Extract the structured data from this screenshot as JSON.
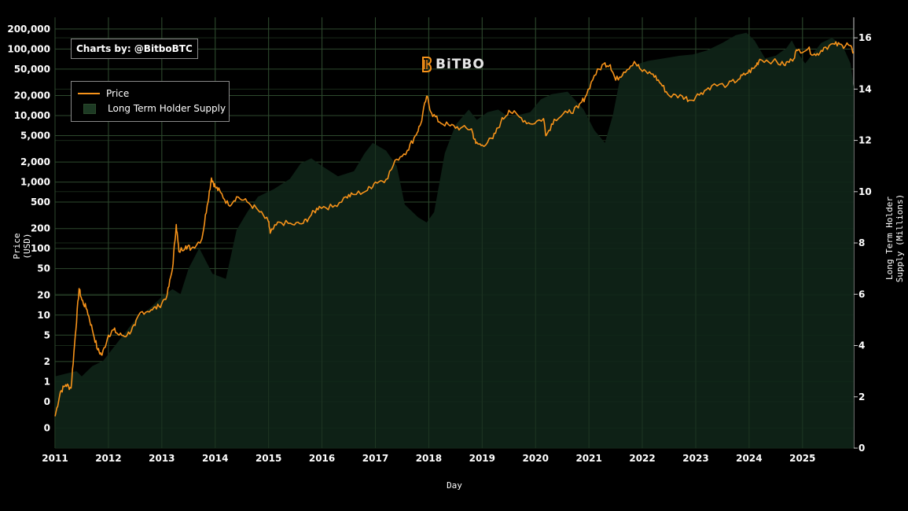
{
  "credit": "Charts by: @BitboBTC",
  "brand": {
    "logo_text": "BiTBO",
    "logo_icon": "bitbo-logo-icon"
  },
  "legend": {
    "placement": "top-left",
    "items": [
      {
        "label": "Price",
        "color": "#f7931a",
        "kind": "line"
      },
      {
        "label": "Long Term Holder Supply",
        "color": "#10251a",
        "kind": "area"
      }
    ]
  },
  "colors": {
    "background": "#000000",
    "grid": "#2e4a2e",
    "price": "#f7931a",
    "supply_fill": "#0f2418",
    "text": "#ffffff"
  },
  "chart_data": {
    "type": "line",
    "grid": true,
    "xlabel": "Day",
    "ylabel_left": "Price (USD)",
    "ylabel_right": "Long Term Holder Supply (Millions)",
    "x_ticks": [
      "2011",
      "2012",
      "2013",
      "2014",
      "2015",
      "2016",
      "2017",
      "2018",
      "2019",
      "2020",
      "2021",
      "2022",
      "2023",
      "2024",
      "2025"
    ],
    "x_range": [
      2011.0,
      2025.96
    ],
    "y_left": {
      "scale": "log",
      "range": [
        0.1,
        300000
      ],
      "ticks": [
        {
          "label": "200,000",
          "value": 200000
        },
        {
          "label": "100,000",
          "value": 100000
        },
        {
          "label": "50,000",
          "value": 50000
        },
        {
          "label": "20,000",
          "value": 20000
        },
        {
          "label": "10,000",
          "value": 10000
        },
        {
          "label": "5,000",
          "value": 5000
        },
        {
          "label": "2,000",
          "value": 2000
        },
        {
          "label": "1,000",
          "value": 1000
        },
        {
          "label": "500",
          "value": 500
        },
        {
          "label": "200",
          "value": 200
        },
        {
          "label": "100",
          "value": 100
        },
        {
          "label": "50",
          "value": 50
        },
        {
          "label": "20",
          "value": 20
        },
        {
          "label": "10",
          "value": 10
        },
        {
          "label": "5",
          "value": 5
        },
        {
          "label": "2",
          "value": 2
        },
        {
          "label": "1",
          "value": 1
        },
        {
          "label": "0",
          "value": 0.5
        },
        {
          "label": "0",
          "value": 0.2
        }
      ]
    },
    "y_right": {
      "scale": "linear",
      "range": [
        0,
        16.8
      ],
      "ticks": [
        {
          "label": "16",
          "value": 16
        },
        {
          "label": "14",
          "value": 14
        },
        {
          "label": "12",
          "value": 12
        },
        {
          "label": "10",
          "value": 10
        },
        {
          "label": "8",
          "value": 8
        },
        {
          "label": "6",
          "value": 6
        },
        {
          "label": "4",
          "value": 4
        },
        {
          "label": "2",
          "value": 2
        },
        {
          "label": "0",
          "value": 0
        }
      ]
    },
    "series": [
      {
        "name": "Price",
        "axis": "left",
        "points": [
          [
            2011.0,
            0.3
          ],
          [
            2011.1,
            0.7
          ],
          [
            2011.2,
            0.9
          ],
          [
            2011.3,
            0.8
          ],
          [
            2011.38,
            5
          ],
          [
            2011.45,
            25
          ],
          [
            2011.5,
            17
          ],
          [
            2011.6,
            12
          ],
          [
            2011.7,
            6
          ],
          [
            2011.8,
            3
          ],
          [
            2011.88,
            2.5
          ],
          [
            2012.0,
            5
          ],
          [
            2012.1,
            6
          ],
          [
            2012.2,
            5
          ],
          [
            2012.35,
            5
          ],
          [
            2012.5,
            7
          ],
          [
            2012.6,
            11
          ],
          [
            2012.8,
            12
          ],
          [
            2012.95,
            13.5
          ],
          [
            2013.1,
            20
          ],
          [
            2013.2,
            50
          ],
          [
            2013.27,
            230
          ],
          [
            2013.32,
            90
          ],
          [
            2013.45,
            110
          ],
          [
            2013.55,
            100
          ],
          [
            2013.75,
            140
          ],
          [
            2013.85,
            450
          ],
          [
            2013.93,
            1150
          ],
          [
            2014.0,
            850
          ],
          [
            2014.1,
            700
          ],
          [
            2014.25,
            450
          ],
          [
            2014.4,
            600
          ],
          [
            2014.6,
            500
          ],
          [
            2014.8,
            380
          ],
          [
            2015.0,
            250
          ],
          [
            2015.03,
            170
          ],
          [
            2015.2,
            250
          ],
          [
            2015.45,
            230
          ],
          [
            2015.65,
            240
          ],
          [
            2015.8,
            320
          ],
          [
            2015.95,
            430
          ],
          [
            2016.2,
            420
          ],
          [
            2016.45,
            600
          ],
          [
            2016.6,
            650
          ],
          [
            2016.85,
            750
          ],
          [
            2017.0,
            1000
          ],
          [
            2017.2,
            1100
          ],
          [
            2017.4,
            2200
          ],
          [
            2017.6,
            3000
          ],
          [
            2017.75,
            5000
          ],
          [
            2017.85,
            7500
          ],
          [
            2017.96,
            19500
          ],
          [
            2018.05,
            11000
          ],
          [
            2018.2,
            8000
          ],
          [
            2018.4,
            7000
          ],
          [
            2018.6,
            6500
          ],
          [
            2018.8,
            6300
          ],
          [
            2018.88,
            3800
          ],
          [
            2019.0,
            3600
          ],
          [
            2019.2,
            4500
          ],
          [
            2019.35,
            8000
          ],
          [
            2019.5,
            12000
          ],
          [
            2019.7,
            9500
          ],
          [
            2019.9,
            7500
          ],
          [
            2020.15,
            9000
          ],
          [
            2020.2,
            5000
          ],
          [
            2020.35,
            8800
          ],
          [
            2020.6,
            11000
          ],
          [
            2020.8,
            13000
          ],
          [
            2020.93,
            19000
          ],
          [
            2021.1,
            40000
          ],
          [
            2021.28,
            60000
          ],
          [
            2021.4,
            58000
          ],
          [
            2021.5,
            34000
          ],
          [
            2021.65,
            45000
          ],
          [
            2021.85,
            65000
          ],
          [
            2022.0,
            46000
          ],
          [
            2022.2,
            42000
          ],
          [
            2022.35,
            30000
          ],
          [
            2022.5,
            20000
          ],
          [
            2022.75,
            19500
          ],
          [
            2022.9,
            17000
          ],
          [
            2023.1,
            22000
          ],
          [
            2023.3,
            28000
          ],
          [
            2023.6,
            29000
          ],
          [
            2023.8,
            35000
          ],
          [
            2023.95,
            43000
          ],
          [
            2024.1,
            52000
          ],
          [
            2024.2,
            70000
          ],
          [
            2024.45,
            66000
          ],
          [
            2024.65,
            58000
          ],
          [
            2024.8,
            68000
          ],
          [
            2024.9,
            95000
          ],
          [
            2025.1,
            100000
          ],
          [
            2025.25,
            80000
          ],
          [
            2025.4,
            105000
          ],
          [
            2025.6,
            118000
          ],
          [
            2025.75,
            112000
          ],
          [
            2025.85,
            118000
          ],
          [
            2025.96,
            88000
          ]
        ]
      },
      {
        "name": "Long Term Holder Supply",
        "axis": "right",
        "points": [
          [
            2011.0,
            2.8
          ],
          [
            2011.2,
            2.9
          ],
          [
            2011.4,
            3.0
          ],
          [
            2011.5,
            2.8
          ],
          [
            2011.7,
            3.2
          ],
          [
            2011.9,
            3.4
          ],
          [
            2012.2,
            4.2
          ],
          [
            2012.5,
            5.0
          ],
          [
            2012.8,
            5.5
          ],
          [
            2013.0,
            5.9
          ],
          [
            2013.2,
            6.2
          ],
          [
            2013.35,
            6.0
          ],
          [
            2013.5,
            7.0
          ],
          [
            2013.7,
            7.8
          ],
          [
            2013.8,
            7.4
          ],
          [
            2013.95,
            6.8
          ],
          [
            2014.2,
            6.6
          ],
          [
            2014.4,
            8.5
          ],
          [
            2014.6,
            9.2
          ],
          [
            2014.8,
            9.8
          ],
          [
            2015.1,
            10.1
          ],
          [
            2015.4,
            10.5
          ],
          [
            2015.6,
            11.1
          ],
          [
            2015.8,
            11.3
          ],
          [
            2016.0,
            11.0
          ],
          [
            2016.3,
            10.6
          ],
          [
            2016.6,
            10.8
          ],
          [
            2016.8,
            11.5
          ],
          [
            2016.95,
            11.9
          ],
          [
            2017.2,
            11.6
          ],
          [
            2017.4,
            11.0
          ],
          [
            2017.55,
            9.5
          ],
          [
            2017.8,
            9.0
          ],
          [
            2017.96,
            8.8
          ],
          [
            2018.1,
            9.2
          ],
          [
            2018.3,
            11.5
          ],
          [
            2018.5,
            12.6
          ],
          [
            2018.75,
            13.2
          ],
          [
            2018.9,
            12.8
          ],
          [
            2019.1,
            13.1
          ],
          [
            2019.3,
            13.2
          ],
          [
            2019.5,
            12.9
          ],
          [
            2019.7,
            13.0
          ],
          [
            2019.9,
            13.1
          ],
          [
            2020.1,
            13.6
          ],
          [
            2020.3,
            13.8
          ],
          [
            2020.6,
            13.9
          ],
          [
            2020.9,
            13.2
          ],
          [
            2021.1,
            12.4
          ],
          [
            2021.3,
            11.9
          ],
          [
            2021.45,
            13.0
          ],
          [
            2021.6,
            14.6
          ],
          [
            2021.8,
            14.9
          ],
          [
            2022.1,
            15.1
          ],
          [
            2022.4,
            15.2
          ],
          [
            2022.7,
            15.3
          ],
          [
            2022.95,
            15.35
          ],
          [
            2023.2,
            15.5
          ],
          [
            2023.5,
            15.8
          ],
          [
            2023.75,
            16.1
          ],
          [
            2023.95,
            16.2
          ],
          [
            2024.1,
            15.9
          ],
          [
            2024.3,
            15.2
          ],
          [
            2024.5,
            15.3
          ],
          [
            2024.7,
            15.6
          ],
          [
            2024.8,
            15.9
          ],
          [
            2024.95,
            15.3
          ],
          [
            2025.05,
            15.0
          ],
          [
            2025.2,
            15.4
          ],
          [
            2025.35,
            15.8
          ],
          [
            2025.55,
            16.0
          ],
          [
            2025.75,
            15.7
          ],
          [
            2025.9,
            15.0
          ],
          [
            2025.96,
            14.1
          ]
        ]
      }
    ]
  }
}
